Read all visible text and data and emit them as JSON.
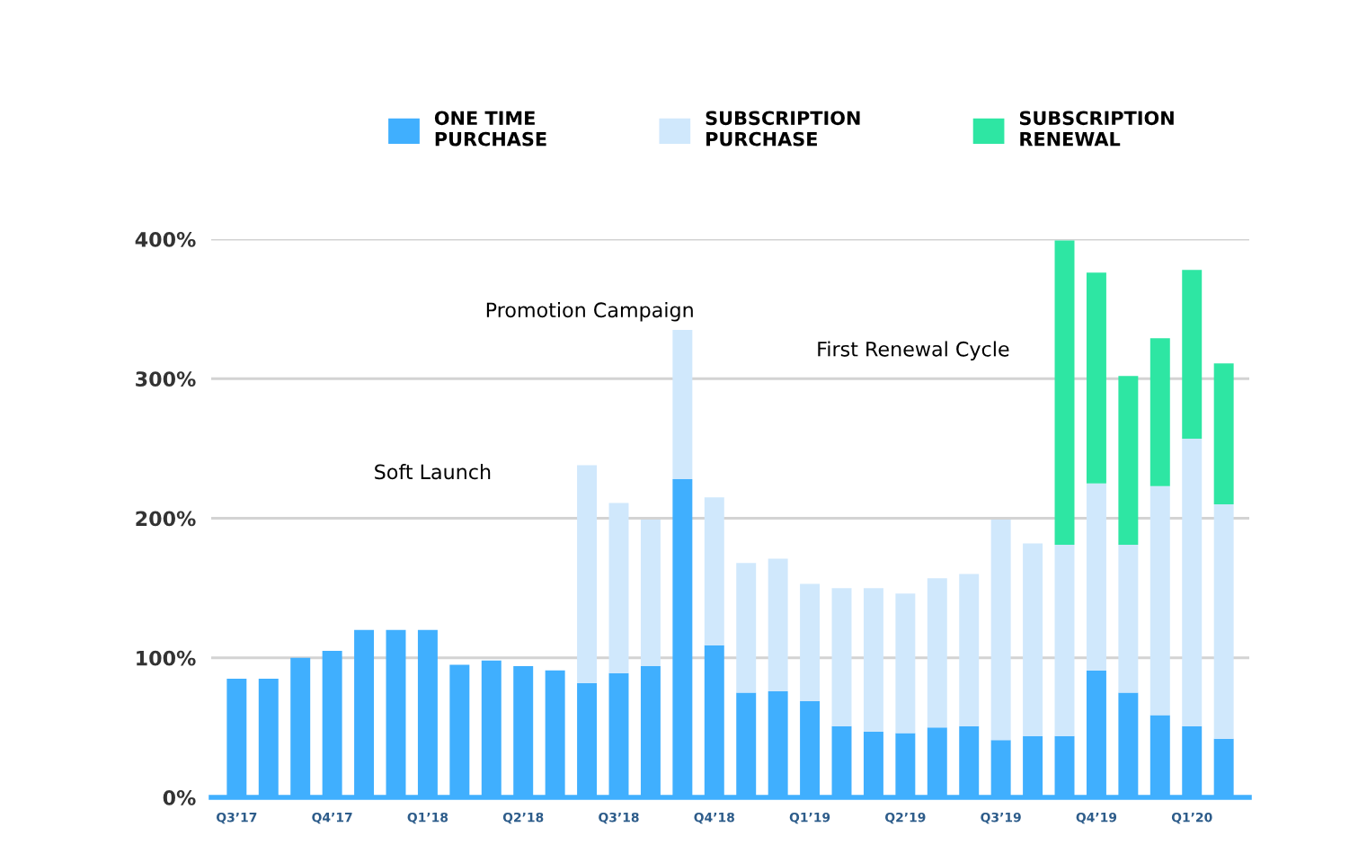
{
  "chart_data": {
    "type": "bar",
    "stacked": true,
    "categories": [
      "Q3’17",
      null,
      null,
      "Q4’17",
      null,
      null,
      "Q1’18",
      null,
      null,
      "Q2’18",
      null,
      null,
      "Q3’18",
      null,
      null,
      "Q4’18",
      null,
      null,
      "Q1’19",
      null,
      null,
      "Q2’19",
      null,
      null,
      "Q3’19",
      null,
      null,
      "Q4’19",
      null,
      null,
      "Q1’20",
      null
    ],
    "series": [
      {
        "name": "ONE TIME\nPURCHASE",
        "color": "#40affe",
        "values": [
          85,
          85,
          100,
          105,
          120,
          120,
          120,
          95,
          98,
          94,
          91,
          82,
          89,
          94,
          228,
          109,
          75,
          76,
          69,
          51,
          47,
          46,
          50,
          51,
          41,
          44,
          44,
          91,
          75,
          59,
          51,
          42
        ]
      },
      {
        "name": "SUBSCRIPTION\nPURCHASE",
        "color": "#d0e8fc",
        "values": [
          null,
          null,
          null,
          null,
          null,
          null,
          null,
          null,
          null,
          null,
          null,
          156,
          122,
          105,
          107,
          106,
          93,
          95,
          84,
          99,
          103,
          100,
          107,
          109,
          158,
          138,
          137,
          134,
          106,
          164,
          206,
          168
        ]
      },
      {
        "name": "SUBSCRIPTION\nRENEWAL",
        "color": "#2ee6a3",
        "values": [
          null,
          null,
          null,
          null,
          null,
          null,
          null,
          null,
          null,
          null,
          null,
          null,
          null,
          null,
          null,
          null,
          null,
          null,
          null,
          null,
          null,
          null,
          null,
          null,
          null,
          null,
          218,
          151,
          121,
          106,
          121,
          101
        ]
      }
    ],
    "ylim": [
      0,
      400
    ],
    "yticks": [
      {
        "value": 0,
        "label": "0%"
      },
      {
        "value": 100,
        "label": "100%"
      },
      {
        "value": 200,
        "label": "200%"
      },
      {
        "value": 300,
        "label": "300%"
      },
      {
        "value": 400,
        "label": "400%"
      }
    ],
    "grid": "y",
    "legend": "top",
    "annotations": [
      "Soft Launch",
      "Promotion Campaign",
      "First Renewal Cycle"
    ]
  }
}
